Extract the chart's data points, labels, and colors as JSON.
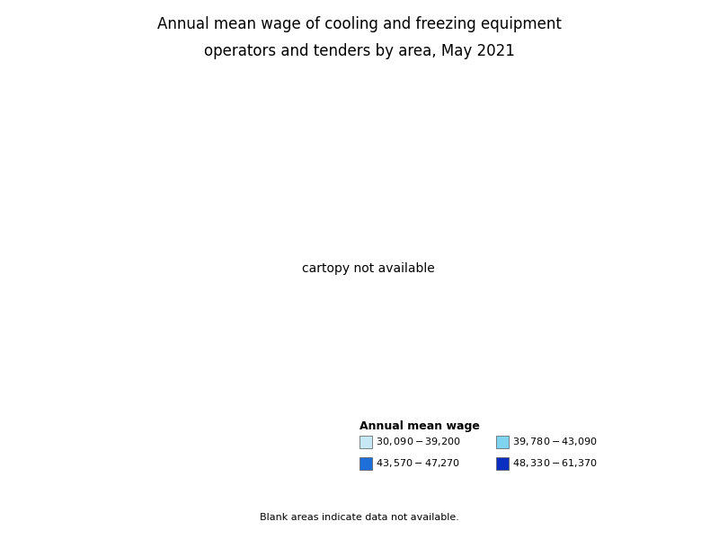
{
  "title_line1": "Annual mean wage of cooling and freezing equipment",
  "title_line2": "operators and tenders by area, May 2021",
  "title_fontsize": 12,
  "legend_title": "Annual mean wage",
  "legend_title_fontsize": 9,
  "legend_fontsize": 8,
  "note": "Blank areas indicate data not available.",
  "note_fontsize": 8,
  "bins": [
    {
      "label": "$30,090 - $39,200",
      "color": "#c6e8f5"
    },
    {
      "label": "$39,780 - $43,090",
      "color": "#7fd4f0"
    },
    {
      "label": "$43,570 - $47,270",
      "color": "#1e6fd9"
    },
    {
      "label": "$48,330 - $61,370",
      "color": "#0a2ebf"
    }
  ],
  "no_data_color": "#f0f0f0",
  "border_color": "#888888",
  "border_linewidth": 0.3,
  "state_border_color": "#555555",
  "state_border_linewidth": 0.7,
  "background_color": "#ffffff",
  "figsize": [
    8.0,
    6.0
  ],
  "dpi": 100
}
